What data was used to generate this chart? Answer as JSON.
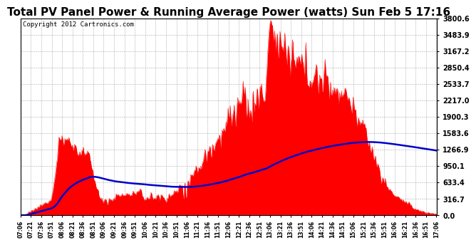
{
  "title": "Total PV Panel Power & Running Average Power (watts) Sun Feb 5 17:16",
  "copyright": "Copyright 2012 Cartronics.com",
  "y_ticks": [
    0.0,
    316.7,
    633.4,
    950.1,
    1266.9,
    1583.6,
    1900.3,
    2217.0,
    2533.7,
    2850.4,
    3167.2,
    3483.9,
    3800.6
  ],
  "ymax": 3800.6,
  "ymin": 0.0,
  "bar_color": "#FF0000",
  "avg_color": "#0000CC",
  "bg_color": "#FFFFFF",
  "plot_bg_color": "#FFFFFF",
  "grid_color": "#777777",
  "title_fontsize": 11,
  "copyright_fontsize": 6.5
}
